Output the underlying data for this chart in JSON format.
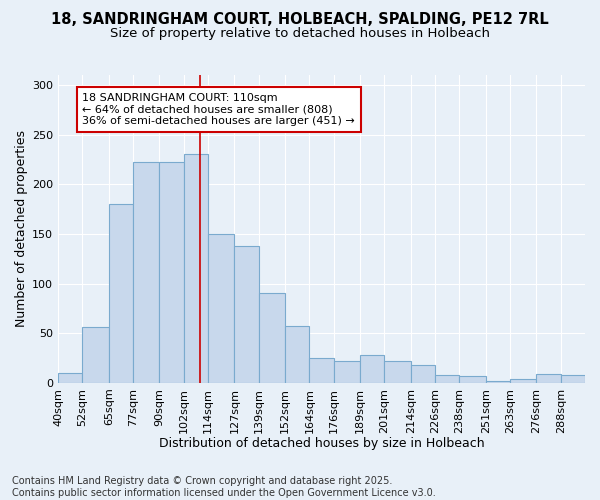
{
  "title_line1": "18, SANDRINGHAM COURT, HOLBEACH, SPALDING, PE12 7RL",
  "title_line2": "Size of property relative to detached houses in Holbeach",
  "xlabel": "Distribution of detached houses by size in Holbeach",
  "ylabel": "Number of detached properties",
  "bins": [
    "40sqm",
    "52sqm",
    "65sqm",
    "77sqm",
    "90sqm",
    "102sqm",
    "114sqm",
    "127sqm",
    "139sqm",
    "152sqm",
    "164sqm",
    "176sqm",
    "189sqm",
    "201sqm",
    "214sqm",
    "226sqm",
    "238sqm",
    "251sqm",
    "263sqm",
    "276sqm",
    "288sqm"
  ],
  "bin_edges": [
    40,
    52,
    65,
    77,
    90,
    102,
    114,
    127,
    139,
    152,
    164,
    176,
    189,
    201,
    214,
    226,
    238,
    251,
    263,
    276,
    288,
    300
  ],
  "values": [
    10,
    56,
    180,
    222,
    222,
    230,
    150,
    138,
    90,
    57,
    25,
    22,
    28,
    22,
    18,
    8,
    7,
    2,
    4,
    9,
    8
  ],
  "bar_color": "#c8d8ec",
  "bar_edge_color": "#7aaace",
  "property_size": 110,
  "vline_color": "#cc0000",
  "annotation_text": "18 SANDRINGHAM COURT: 110sqm\n← 64% of detached houses are smaller (808)\n36% of semi-detached houses are larger (451) →",
  "annotation_box_color": "#ffffff",
  "annotation_box_edge": "#cc0000",
  "ylim": [
    0,
    310
  ],
  "yticks": [
    0,
    50,
    100,
    150,
    200,
    250,
    300
  ],
  "background_color": "#e8f0f8",
  "footer_text": "Contains HM Land Registry data © Crown copyright and database right 2025.\nContains public sector information licensed under the Open Government Licence v3.0.",
  "title_fontsize": 10.5,
  "subtitle_fontsize": 9.5,
  "axis_label_fontsize": 9,
  "tick_fontsize": 8,
  "annotation_fontsize": 8,
  "footer_fontsize": 7
}
